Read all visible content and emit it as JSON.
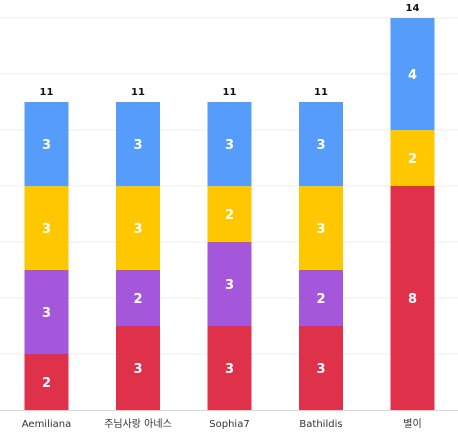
{
  "chart_data": {
    "type": "bar",
    "stacked": true,
    "categories": [
      "Aemiliana",
      "주님사랑 아네스",
      "Sophia7",
      "Bathildis",
      "별이"
    ],
    "series": [
      {
        "values": [
          2,
          3,
          3,
          3,
          8
        ],
        "color": "#E0314B"
      },
      {
        "values": [
          3,
          2,
          3,
          2,
          0
        ],
        "color": "#A457DB"
      },
      {
        "values": [
          3,
          3,
          2,
          3,
          2
        ],
        "color": "#FFC700"
      },
      {
        "values": [
          3,
          3,
          3,
          3,
          4
        ],
        "color": "#569CFA"
      }
    ],
    "totals": [
      11,
      11,
      11,
      11,
      14
    ],
    "ylim": [
      0,
      14
    ],
    "grid": true,
    "legend": "none",
    "title": "",
    "xlabel": "",
    "ylabel": ""
  }
}
